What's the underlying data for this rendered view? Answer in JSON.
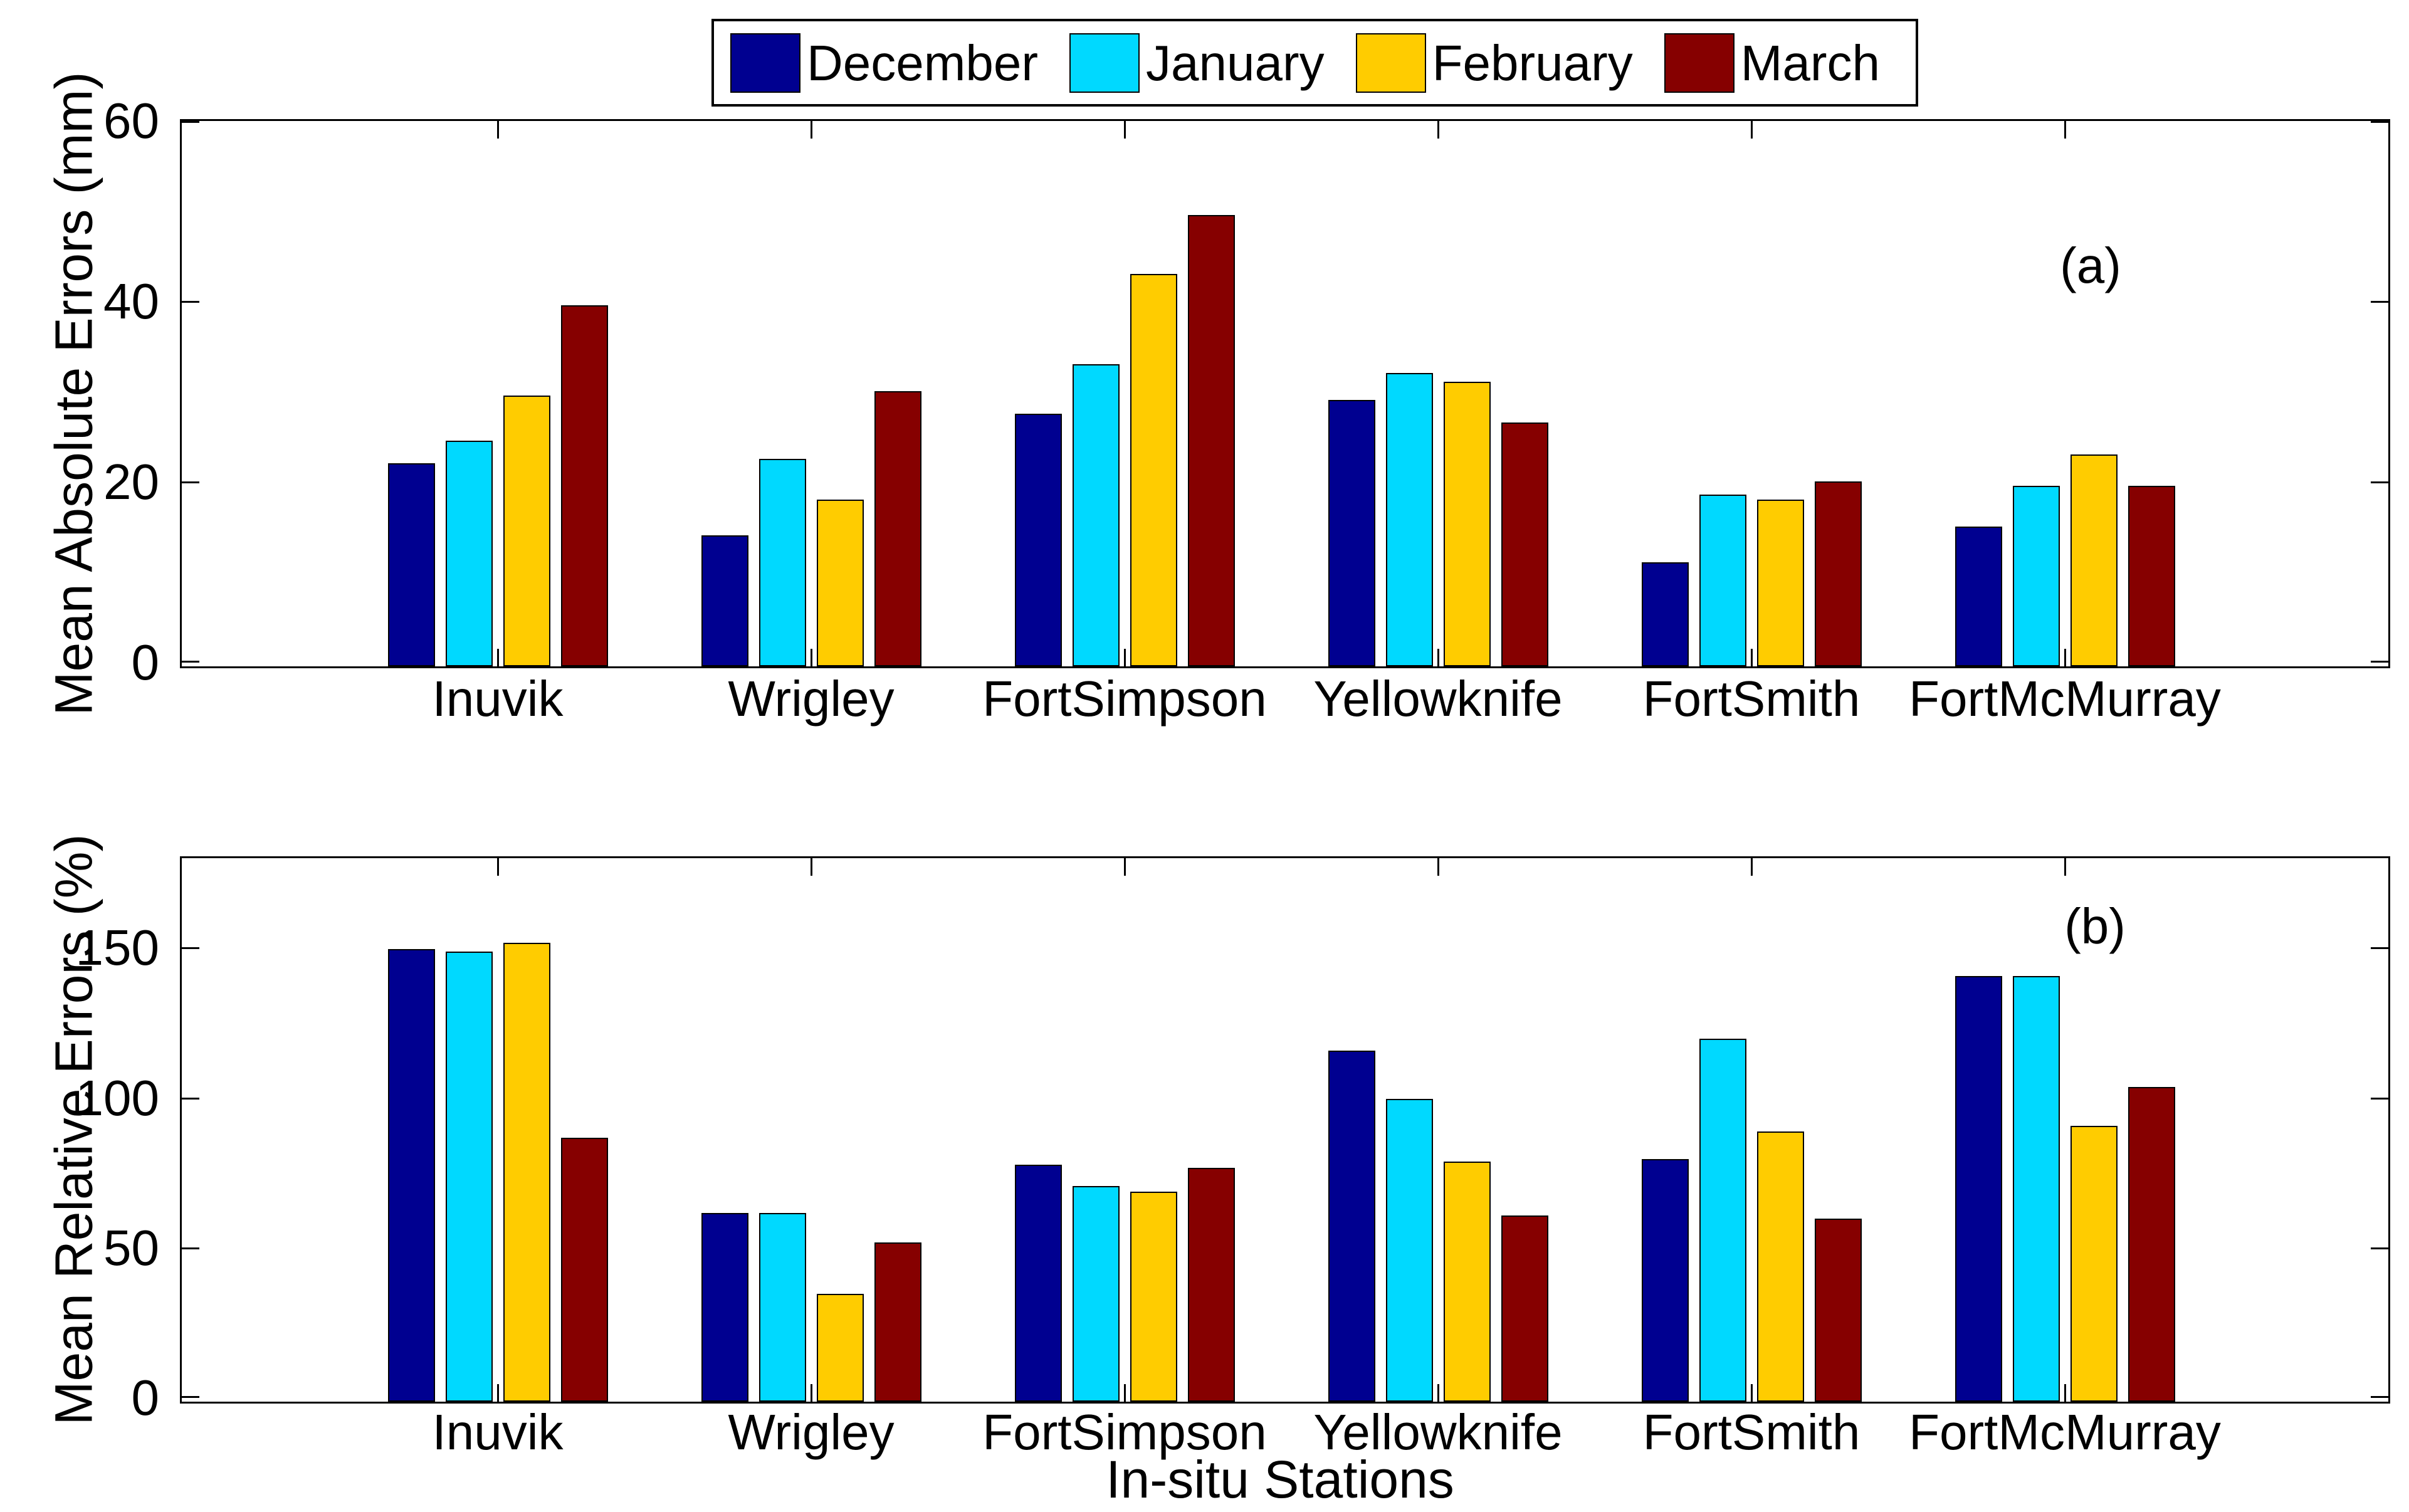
{
  "figure": {
    "background": "#ffffff",
    "panel_letters": [
      "(a)",
      "(b)"
    ]
  },
  "legend": {
    "position": "top-center",
    "items": [
      {
        "label": "December",
        "color": "#000090"
      },
      {
        "label": "January",
        "color": "#00D9FF"
      },
      {
        "label": "February",
        "color": "#FFCC00"
      },
      {
        "label": "March",
        "color": "#860000"
      }
    ]
  },
  "chart_data": [
    {
      "type": "bar",
      "panel_label": "(a)",
      "title": "",
      "ylabel": "Mean Absolute Errors (mm)",
      "xlabel": "",
      "ylim": [
        0,
        60
      ],
      "yticks": [
        0,
        20,
        40,
        60
      ],
      "grid": false,
      "legend_position": "top-center-outside",
      "categories": [
        "Inuvik",
        "Wrigley",
        "FortSimpson",
        "Yellowknife",
        "FortSmith",
        "FortMcMurray"
      ],
      "series": [
        {
          "name": "December",
          "color": "#000090",
          "values": [
            22.5,
            14.5,
            28,
            29.5,
            11.5,
            15.5
          ]
        },
        {
          "name": "January",
          "color": "#00D9FF",
          "values": [
            25,
            23,
            33.5,
            32.5,
            19,
            20
          ]
        },
        {
          "name": "February",
          "color": "#FFCC00",
          "values": [
            30,
            18.5,
            43.5,
            31.5,
            18.5,
            23.5
          ]
        },
        {
          "name": "March",
          "color": "#860000",
          "values": [
            40,
            30.5,
            50,
            27,
            20.5,
            20
          ]
        }
      ]
    },
    {
      "type": "bar",
      "panel_label": "(b)",
      "title": "",
      "ylabel": "Mean Relative Errors (%)",
      "xlabel": "In-situ Stations",
      "ylim": [
        0,
        180
      ],
      "yticks": [
        0,
        50,
        100,
        150
      ],
      "grid": false,
      "legend_position": "shared-with-panel-a",
      "categories": [
        "Inuvik",
        "Wrigley",
        "FortSimpson",
        "Yellowknife",
        "FortSmith",
        "FortMcMurray"
      ],
      "series": [
        {
          "name": "December",
          "color": "#000090",
          "values": [
            151,
            63,
            79,
            117,
            81,
            142
          ]
        },
        {
          "name": "January",
          "color": "#00D9FF",
          "values": [
            150,
            63,
            72,
            101,
            121,
            142
          ]
        },
        {
          "name": "February",
          "color": "#FFCC00",
          "values": [
            153,
            36,
            70,
            80,
            90,
            92
          ]
        },
        {
          "name": "March",
          "color": "#860000",
          "values": [
            88,
            53,
            78,
            62,
            61,
            105
          ]
        }
      ]
    }
  ]
}
